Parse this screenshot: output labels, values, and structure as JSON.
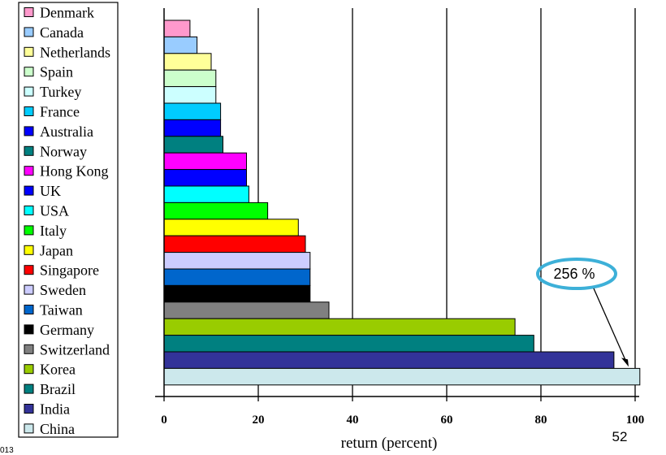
{
  "chart_data": {
    "type": "bar",
    "orientation": "horizontal",
    "xlabel": "return (percent)",
    "xlim": [
      0,
      100
    ],
    "xticks": [
      0,
      20,
      40,
      60,
      80,
      100
    ],
    "grid": "vertical",
    "legend_position": "left",
    "series": [
      {
        "name": "Denmark",
        "value": 5.5,
        "color": "#ff99cc"
      },
      {
        "name": "Canada",
        "value": 7,
        "color": "#99ccff"
      },
      {
        "name": "Netherlands",
        "value": 10,
        "color": "#ffff99"
      },
      {
        "name": "Spain",
        "value": 11,
        "color": "#ccffcc"
      },
      {
        "name": "Turkey",
        "value": 11,
        "color": "#ccffff"
      },
      {
        "name": "France",
        "value": 12,
        "color": "#00ccff"
      },
      {
        "name": "Australia",
        "value": 12,
        "color": "#0000ff"
      },
      {
        "name": "Norway",
        "value": 12.5,
        "color": "#008080"
      },
      {
        "name": "Hong Kong",
        "value": 17.5,
        "color": "#ff00ff"
      },
      {
        "name": "UK",
        "value": 17.5,
        "color": "#0000ff"
      },
      {
        "name": "USA",
        "value": 18,
        "color": "#00ffff"
      },
      {
        "name": "Italy",
        "value": 22,
        "color": "#00ff00"
      },
      {
        "name": "Japan",
        "value": 28.5,
        "color": "#ffff00"
      },
      {
        "name": "Singapore",
        "value": 30,
        "color": "#ff0000"
      },
      {
        "name": "Sweden",
        "value": 31,
        "color": "#ccccff"
      },
      {
        "name": "Taiwan",
        "value": 31,
        "color": "#0066cc"
      },
      {
        "name": "Germany",
        "value": 31,
        "color": "#000000"
      },
      {
        "name": "Switzerland",
        "value": 35,
        "color": "#808080"
      },
      {
        "name": "Korea",
        "value": 74.5,
        "color": "#99cc00"
      },
      {
        "name": "Brazil",
        "value": 78.5,
        "color": "#008080"
      },
      {
        "name": "India",
        "value": 95.5,
        "color": "#333399"
      },
      {
        "name": "China",
        "value": 256,
        "color": "#cce8ec"
      }
    ],
    "annotations": [
      {
        "text": "256 %",
        "target": "China",
        "style": "ellipse-callout",
        "color": "#3db0d8"
      }
    ]
  },
  "page_number": "52",
  "footer_fragment": "013"
}
